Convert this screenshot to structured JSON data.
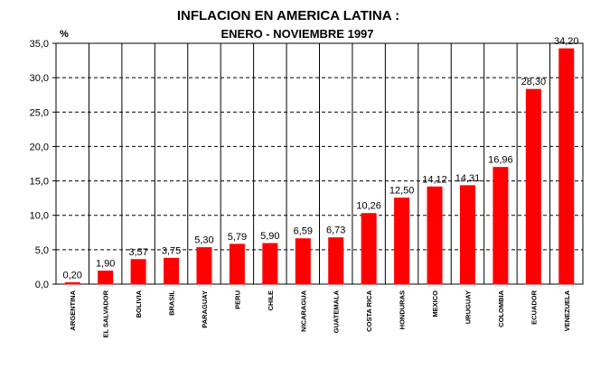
{
  "chart_data": {
    "type": "bar",
    "title": "INFLACION EN AMERICA LATINA :",
    "subtitle": "ENERO - NOVIEMBRE 1997",
    "ylabel": "%",
    "xlabel": "",
    "ylim": [
      0,
      35
    ],
    "yticks": [
      "0,0",
      "5,0",
      "10,0",
      "15,0",
      "20,0",
      "25,0",
      "30,0",
      "35,0"
    ],
    "categories": [
      "ARGENTINA",
      "EL SALVADOR",
      "BOLIVIA",
      "BRASIL",
      "PARAGUAY",
      "PERU",
      "CHILE",
      "NICARAGUA",
      "GUATEMALA",
      "COSTA RICA",
      "HONDURAS",
      "MEXICO",
      "URUGUAY",
      "COLOMBIA",
      "ECUADOR",
      "VENEZUELA"
    ],
    "values": [
      0.2,
      1.9,
      3.57,
      3.75,
      5.3,
      5.79,
      5.9,
      6.59,
      6.73,
      10.26,
      12.5,
      14.12,
      14.31,
      16.96,
      28.3,
      34.2
    ],
    "value_labels": [
      "0,20",
      "1,90",
      "3,57",
      "3,75",
      "5,30",
      "5,79",
      "5,90",
      "6,59",
      "6,73",
      "10,26",
      "12,50",
      "14,12",
      "14,31",
      "16,96",
      "28,30",
      "34,20"
    ],
    "bar_color": "#ff0000",
    "grid": "dashed horizontal, solid vertical separators"
  }
}
